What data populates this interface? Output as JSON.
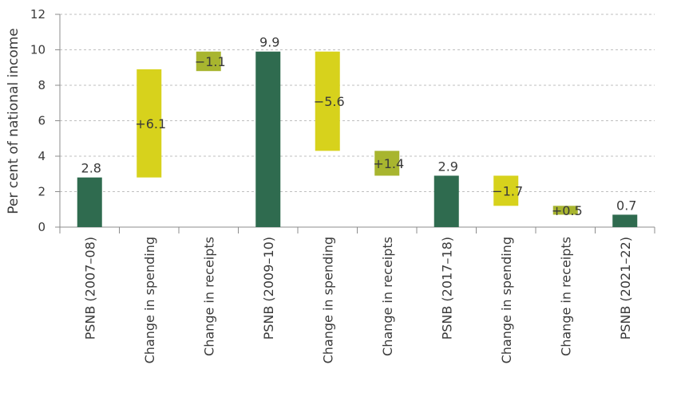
{
  "chart_data": {
    "type": "bar",
    "subtype": "waterfall",
    "ylabel": "Per cent of national income",
    "ylim": [
      0,
      12
    ],
    "yticks": [
      0,
      2,
      4,
      6,
      8,
      10,
      12
    ],
    "grid": true,
    "categories": [
      "PSNB (2007–08)",
      "Change in spending",
      "Change in receipts",
      "PSNB (2009–10)",
      "Change in spending",
      "Change in receipts",
      "PSNB (2017–18)",
      "Change in spending",
      "Change in receipts",
      "PSNB (2021–22)"
    ],
    "bars": [
      {
        "kind": "total",
        "base": 0,
        "top": 2.8,
        "label": "2.8"
      },
      {
        "kind": "spending",
        "base": 2.8,
        "top": 8.9,
        "label": "+6.1"
      },
      {
        "kind": "receipts",
        "base": 8.8,
        "top": 9.9,
        "label": "−1.1"
      },
      {
        "kind": "total",
        "base": 0,
        "top": 9.9,
        "label": "9.9"
      },
      {
        "kind": "spending",
        "base": 4.3,
        "top": 9.9,
        "label": "−5.6"
      },
      {
        "kind": "receipts",
        "base": 2.9,
        "top": 4.3,
        "label": "+1.4"
      },
      {
        "kind": "total",
        "base": 0,
        "top": 2.9,
        "label": "2.9"
      },
      {
        "kind": "spending",
        "base": 1.2,
        "top": 2.9,
        "label": "−1.7"
      },
      {
        "kind": "receipts",
        "base": 0.7,
        "top": 1.2,
        "label": "+0.5"
      },
      {
        "kind": "total",
        "base": 0,
        "top": 0.7,
        "label": "0.7"
      }
    ],
    "colors": {
      "total": "#2f6b4f",
      "spending": "#d7d21c",
      "receipts": "#a8b52f",
      "grid": "#bfbfbf",
      "axis": "#8c8c8c"
    }
  }
}
